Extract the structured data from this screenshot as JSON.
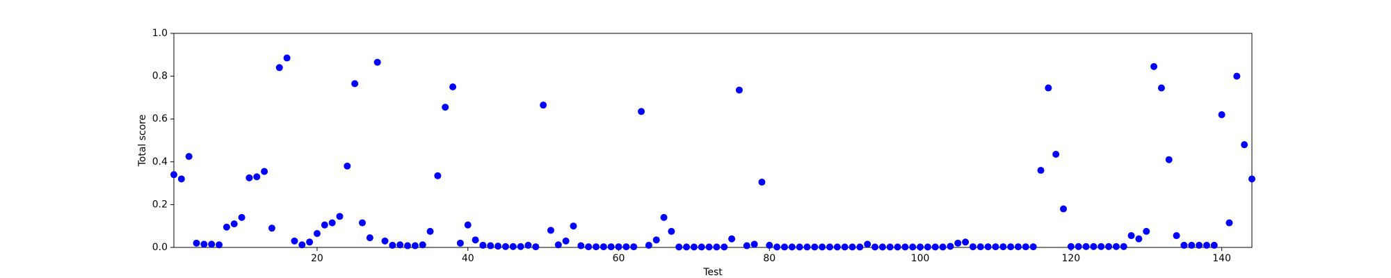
{
  "chart_data": {
    "type": "scatter",
    "xlabel": "Test",
    "ylabel": "Total score",
    "color": "#0000ff",
    "x": [
      1,
      2,
      3,
      4,
      5,
      6,
      7,
      8,
      9,
      10,
      11,
      12,
      13,
      14,
      15,
      16,
      17,
      18,
      19,
      20,
      21,
      22,
      23,
      24,
      25,
      26,
      27,
      28,
      29,
      30,
      31,
      32,
      33,
      34,
      35,
      36,
      37,
      38,
      39,
      40,
      41,
      42,
      43,
      44,
      45,
      46,
      47,
      48,
      49,
      50,
      51,
      52,
      53,
      54,
      55,
      56,
      57,
      58,
      59,
      60,
      61,
      62,
      63,
      64,
      65,
      66,
      67,
      68,
      69,
      70,
      71,
      72,
      73,
      74,
      75,
      76,
      77,
      78,
      79,
      80,
      81,
      82,
      83,
      84,
      85,
      86,
      87,
      88,
      89,
      90,
      91,
      92,
      93,
      94,
      95,
      96,
      97,
      98,
      99,
      100,
      101,
      102,
      103,
      104,
      105,
      106,
      107,
      108,
      109,
      110,
      111,
      112,
      113,
      114,
      115,
      116,
      117,
      118,
      119,
      120,
      121,
      122,
      123,
      124,
      125,
      126,
      127,
      128,
      129,
      130,
      131,
      132,
      133,
      134,
      135,
      136,
      137,
      138,
      139,
      140,
      141,
      142,
      143,
      144
    ],
    "values": [
      0.34,
      0.32,
      0.425,
      0.02,
      0.015,
      0.015,
      0.012,
      0.095,
      0.11,
      0.14,
      0.325,
      0.33,
      0.355,
      0.09,
      0.84,
      0.885,
      0.03,
      0.012,
      0.025,
      0.065,
      0.105,
      0.115,
      0.145,
      0.38,
      0.765,
      0.115,
      0.045,
      0.865,
      0.03,
      0.01,
      0.012,
      0.008,
      0.008,
      0.012,
      0.075,
      0.335,
      0.655,
      0.75,
      0.02,
      0.105,
      0.035,
      0.01,
      0.008,
      0.006,
      0.004,
      0.004,
      0.004,
      0.01,
      0.003,
      0.665,
      0.08,
      0.012,
      0.03,
      0.1,
      0.008,
      0.003,
      0.003,
      0.003,
      0.003,
      0.003,
      0.003,
      0.003,
      0.635,
      0.01,
      0.035,
      0.14,
      0.075,
      0.002,
      0.002,
      0.002,
      0.002,
      0.002,
      0.002,
      0.002,
      0.04,
      0.735,
      0.008,
      0.015,
      0.305,
      0.01,
      0.002,
      0.002,
      0.002,
      0.002,
      0.002,
      0.002,
      0.002,
      0.002,
      0.002,
      0.002,
      0.002,
      0.002,
      0.015,
      0.002,
      0.002,
      0.002,
      0.002,
      0.002,
      0.002,
      0.002,
      0.002,
      0.002,
      0.002,
      0.005,
      0.02,
      0.025,
      0.003,
      0.003,
      0.003,
      0.003,
      0.003,
      0.003,
      0.003,
      0.003,
      0.003,
      0.36,
      0.745,
      0.435,
      0.18,
      0.004,
      0.004,
      0.004,
      0.004,
      0.004,
      0.004,
      0.004,
      0.004,
      0.055,
      0.04,
      0.075,
      0.845,
      0.745,
      0.41,
      0.055,
      0.01,
      0.01,
      0.01,
      0.01,
      0.01,
      0.62,
      0.115,
      0.8,
      0.48,
      0.32
    ],
    "xlim": [
      1,
      144
    ],
    "xticks": [
      20,
      40,
      60,
      80,
      100,
      120,
      140
    ],
    "ylim": [
      0,
      1
    ],
    "yticks": [
      {
        "value": 0,
        "label": "0.0"
      },
      0.2,
      0.4,
      0.6,
      0.8,
      {
        "value": 1,
        "label": "1.0"
      }
    ]
  }
}
